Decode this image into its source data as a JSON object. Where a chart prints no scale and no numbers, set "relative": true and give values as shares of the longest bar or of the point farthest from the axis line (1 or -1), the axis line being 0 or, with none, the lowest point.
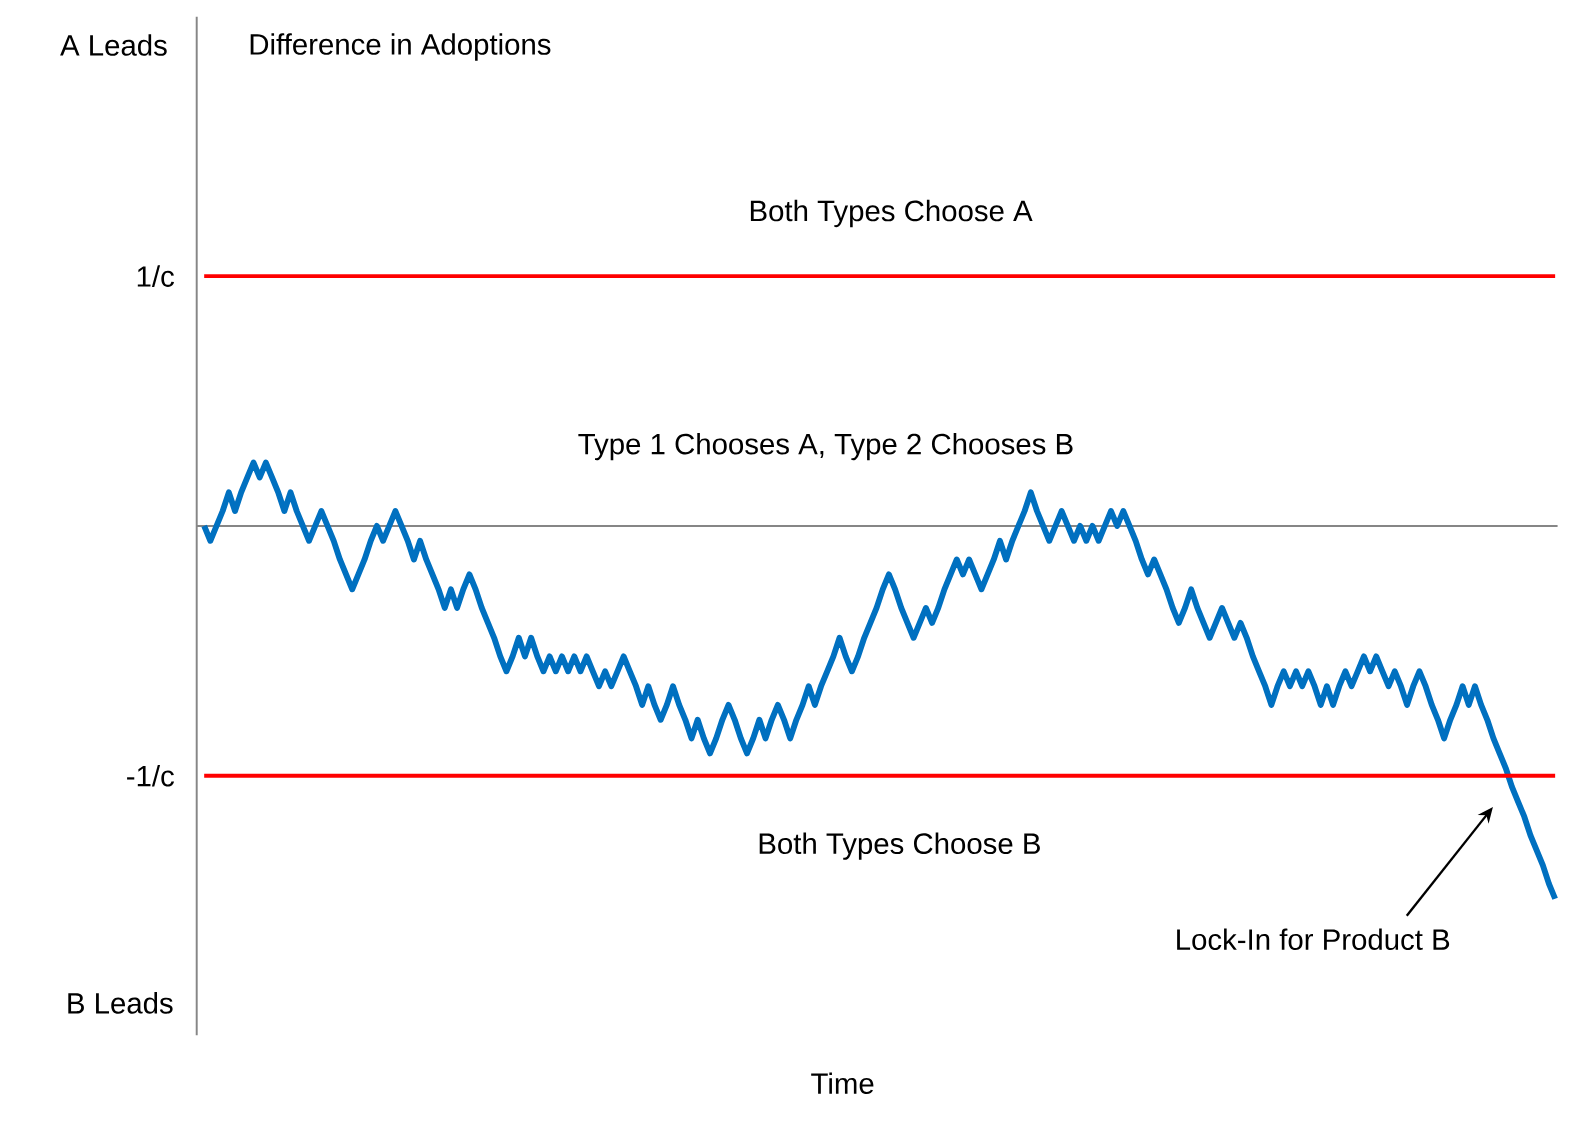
{
  "chart_data": {
    "type": "line",
    "relative": true,
    "annotations": [
      "A Leads",
      "B Leads",
      "Both Types Choose A",
      "Type 1 Chooses A, Type 2 Chooses B",
      "Both Types Choose B",
      "Lock-In for Product B",
      "Difference in Adoptions",
      "Time"
    ],
    "categories": [
      null,
      null,
      null,
      null,
      null,
      null,
      null,
      null,
      null,
      null,
      null,
      null,
      null,
      null,
      null,
      null,
      null,
      null,
      null,
      null,
      null,
      null,
      null,
      null,
      null,
      null,
      null,
      null,
      null,
      null,
      null,
      null,
      null,
      null,
      null,
      null,
      null,
      null,
      null,
      null,
      null,
      null,
      null,
      null,
      null,
      null,
      null,
      null,
      null,
      null,
      null,
      null,
      null,
      null,
      null,
      null,
      null,
      null,
      null,
      null,
      null,
      null,
      null,
      null,
      null,
      null,
      null,
      null,
      null,
      null,
      null,
      null,
      null,
      null,
      null,
      null,
      null,
      null,
      null,
      null,
      null,
      null,
      null,
      null,
      null,
      null,
      null,
      null,
      null,
      null,
      null,
      null,
      null,
      null,
      null,
      null,
      null,
      null,
      null,
      null,
      null,
      null,
      null,
      null,
      null,
      null,
      null,
      null,
      null,
      null,
      null,
      null,
      null,
      null,
      null,
      null,
      null,
      null,
      null,
      null,
      null,
      null,
      null,
      null,
      null,
      null,
      null,
      null,
      null,
      null,
      null,
      null,
      null,
      null,
      null,
      null,
      null,
      null,
      null,
      null,
      null,
      null,
      null,
      null,
      null,
      null,
      null,
      null,
      null,
      null,
      null,
      null,
      null,
      null,
      null,
      null,
      null,
      null,
      null,
      null,
      null,
      null,
      null,
      null,
      null,
      null,
      null,
      null,
      null,
      null,
      null,
      null,
      null,
      null,
      null,
      null,
      null,
      null,
      null,
      null,
      null,
      null,
      null,
      null,
      null,
      null,
      null,
      null,
      null,
      null,
      null,
      null,
      null,
      null,
      null,
      null,
      null,
      null,
      null,
      null,
      null,
      null,
      null,
      null,
      null,
      null,
      null,
      null,
      null,
      null,
      null,
      null,
      null,
      null,
      null,
      null,
      null,
      null,
      null,
      null
    ],
    "series": [
      {
        "color": "#0070c0",
        "values": [
          0,
          -0.04,
          0,
          0.04,
          0.09,
          0.04,
          0.09,
          0.13,
          0.17,
          0.13,
          0.17,
          0.13,
          0.09,
          0.04,
          0.09,
          0.04,
          0,
          -0.04,
          0,
          0.04,
          0,
          -0.04,
          -0.09,
          -0.13,
          -0.17,
          -0.13,
          -0.09,
          -0.04,
          0,
          -0.04,
          0,
          0.04,
          0,
          -0.04,
          -0.09,
          -0.04,
          -0.09,
          -0.13,
          -0.17,
          -0.22,
          -0.17,
          -0.22,
          -0.17,
          -0.13,
          -0.17,
          -0.22,
          -0.26,
          -0.3,
          -0.35,
          -0.39,
          -0.35,
          -0.3,
          -0.35,
          -0.3,
          -0.35,
          -0.39,
          -0.35,
          -0.39,
          -0.35,
          -0.39,
          -0.35,
          -0.39,
          -0.35,
          -0.39,
          -0.43,
          -0.39,
          -0.43,
          -0.39,
          -0.35,
          -0.39,
          -0.43,
          -0.48,
          -0.43,
          -0.48,
          -0.52,
          -0.48,
          -0.43,
          -0.48,
          -0.52,
          -0.57,
          -0.52,
          -0.57,
          -0.61,
          -0.57,
          -0.52,
          -0.48,
          -0.52,
          -0.57,
          -0.61,
          -0.57,
          -0.52,
          -0.57,
          -0.52,
          -0.48,
          -0.52,
          -0.57,
          -0.52,
          -0.48,
          -0.43,
          -0.48,
          -0.43,
          -0.39,
          -0.35,
          -0.3,
          -0.35,
          -0.39,
          -0.35,
          -0.3,
          -0.26,
          -0.22,
          -0.17,
          -0.13,
          -0.17,
          -0.22,
          -0.26,
          -0.3,
          -0.26,
          -0.22,
          -0.26,
          -0.22,
          -0.17,
          -0.13,
          -0.09,
          -0.13,
          -0.09,
          -0.13,
          -0.17,
          -0.13,
          -0.09,
          -0.04,
          -0.09,
          -0.04,
          0,
          0.04,
          0.09,
          0.04,
          0,
          -0.04,
          0,
          0.04,
          0,
          -0.04,
          0,
          -0.04,
          0,
          -0.04,
          0,
          0.04,
          0,
          0.04,
          0,
          -0.04,
          -0.09,
          -0.13,
          -0.09,
          -0.13,
          -0.17,
          -0.22,
          -0.26,
          -0.22,
          -0.17,
          -0.22,
          -0.26,
          -0.3,
          -0.26,
          -0.22,
          -0.26,
          -0.3,
          -0.26,
          -0.3,
          -0.35,
          -0.39,
          -0.43,
          -0.48,
          -0.43,
          -0.39,
          -0.43,
          -0.39,
          -0.43,
          -0.39,
          -0.43,
          -0.48,
          -0.43,
          -0.48,
          -0.43,
          -0.39,
          -0.43,
          -0.39,
          -0.35,
          -0.39,
          -0.35,
          -0.39,
          -0.43,
          -0.39,
          -0.43,
          -0.48,
          -0.43,
          -0.39,
          -0.43,
          -0.48,
          -0.52,
          -0.57,
          -0.52,
          -0.48,
          -0.43,
          -0.48,
          -0.43,
          -0.48,
          -0.52,
          -0.57,
          -0.61,
          -0.65,
          -0.7,
          -0.74,
          -0.78,
          -0.83,
          -0.87,
          -0.91,
          -0.96,
          -1
        ]
      }
    ],
    "ref_lines": [
      {
        "axis": "y",
        "value": 0.67,
        "label": "1/c",
        "color": "#ff0000"
      },
      {
        "axis": "y",
        "value": -0.67,
        "label": "-1/c",
        "color": "#ff0000"
      }
    ],
    "marker": "none",
    "line_style": "solid"
  }
}
